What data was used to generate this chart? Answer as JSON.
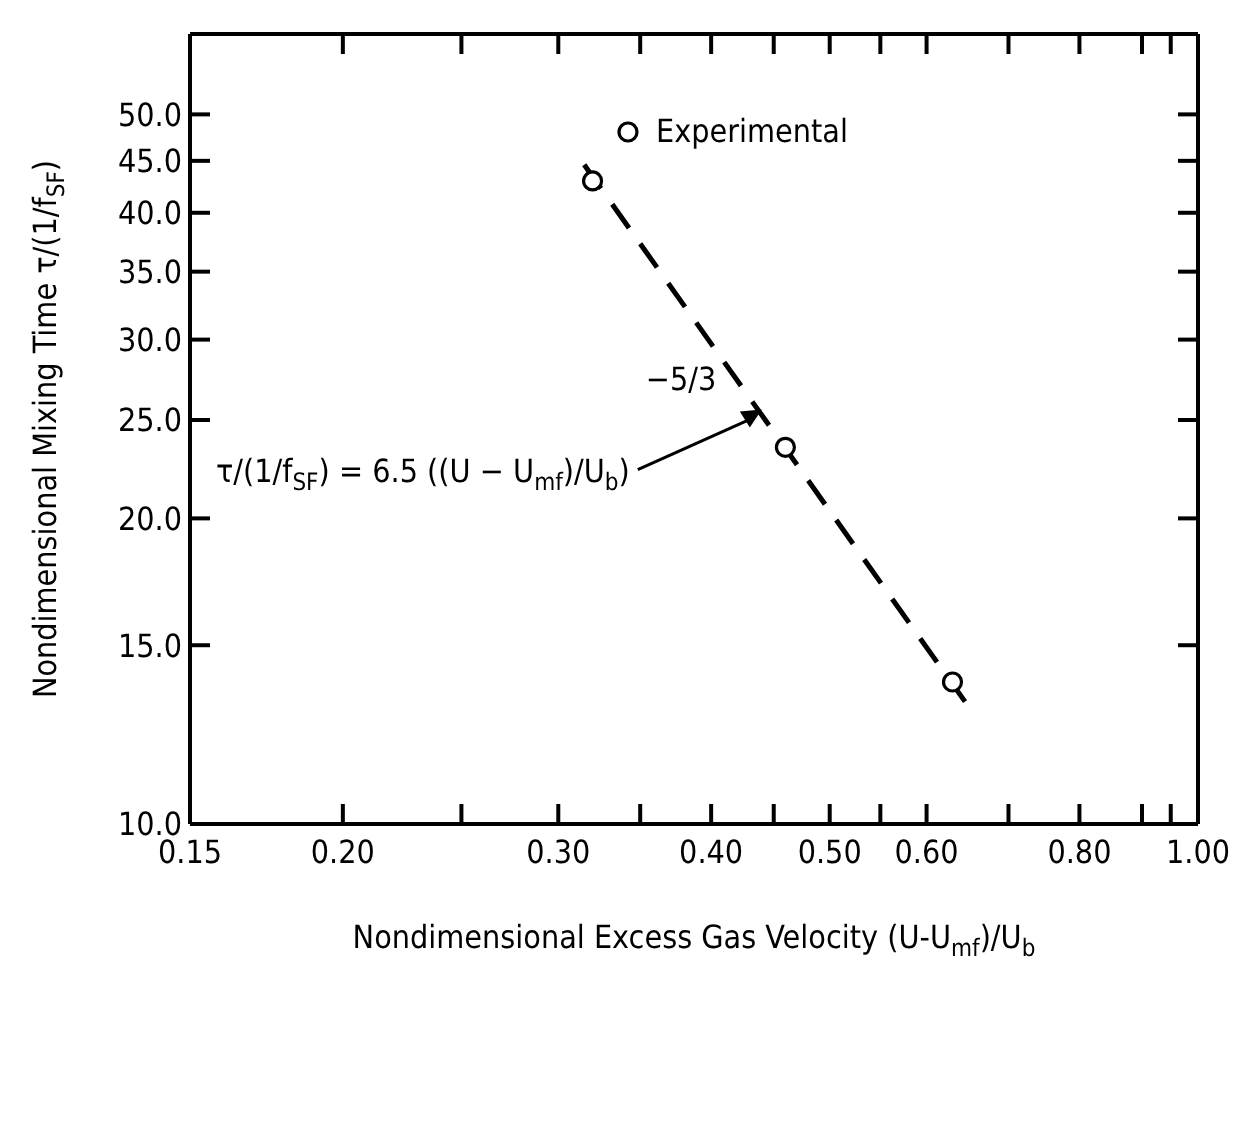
{
  "chart_data": {
    "type": "scatter",
    "xlabel": "Nondimensional Excess Gas Velocity (U-U$_{mf}$)/U$_{b}$",
    "ylabel": "Nondimensional Mixing Time τ/(1/f$_{SF}$)",
    "log": "xy",
    "xlim": [
      0.15,
      1.0
    ],
    "ylim": [
      10,
      60
    ],
    "xticks": [
      0.15,
      {
        "value": 0.2,
        "label": "0.20"
      },
      {
        "value": 0.25,
        "label": null
      },
      {
        "value": 0.3,
        "label": "0.30"
      },
      {
        "value": 0.35,
        "label": null
      },
      {
        "value": 0.4,
        "label": "0.40"
      },
      {
        "value": 0.45,
        "label": null
      },
      {
        "value": 0.5,
        "label": "0.50"
      },
      {
        "value": 0.55,
        "label": null
      },
      {
        "value": 0.6,
        "label": "0.60"
      },
      {
        "value": 0.7,
        "label": null
      },
      {
        "value": 0.8,
        "label": "0.80"
      },
      {
        "value": 0.9,
        "label": null
      },
      {
        "value": 0.95,
        "label": null
      },
      {
        "value": 1.0,
        "label": "1.00"
      }
    ],
    "yticks": [
      {
        "value": 10,
        "label": "10.0"
      },
      {
        "value": 15,
        "label": "15.0"
      },
      {
        "value": 20,
        "label": "20.0"
      },
      {
        "value": 25,
        "label": "25.0"
      },
      {
        "value": 30,
        "label": "30.0"
      },
      {
        "value": 35,
        "label": "35.0"
      },
      {
        "value": 40,
        "label": "40.0"
      },
      {
        "value": 45,
        "label": "45.0"
      },
      {
        "value": 50,
        "label": "50.0"
      }
    ],
    "series": [
      {
        "name": "Experimental",
        "color": "#000000",
        "marker": "circle",
        "x": [
          0.32,
          0.46,
          0.63
        ],
        "values": [
          43,
          23.5,
          13.8
        ]
      },
      {
        "type": "line",
        "color": "#000000",
        "line_style": "dashed",
        "marker": "none",
        "x": [
          0.315,
          0.645
        ],
        "values": [
          44.6,
          13.2
        ]
      }
    ],
    "annotations": [
      {
        "text": "τ/(1/f$_{SF}$) = 6.5 ((U − U$_{mf}$)/U$_{b}$)",
        "x": 0.44,
        "y": 25.6
      },
      "−5/3"
    ],
    "legend": "top"
  }
}
